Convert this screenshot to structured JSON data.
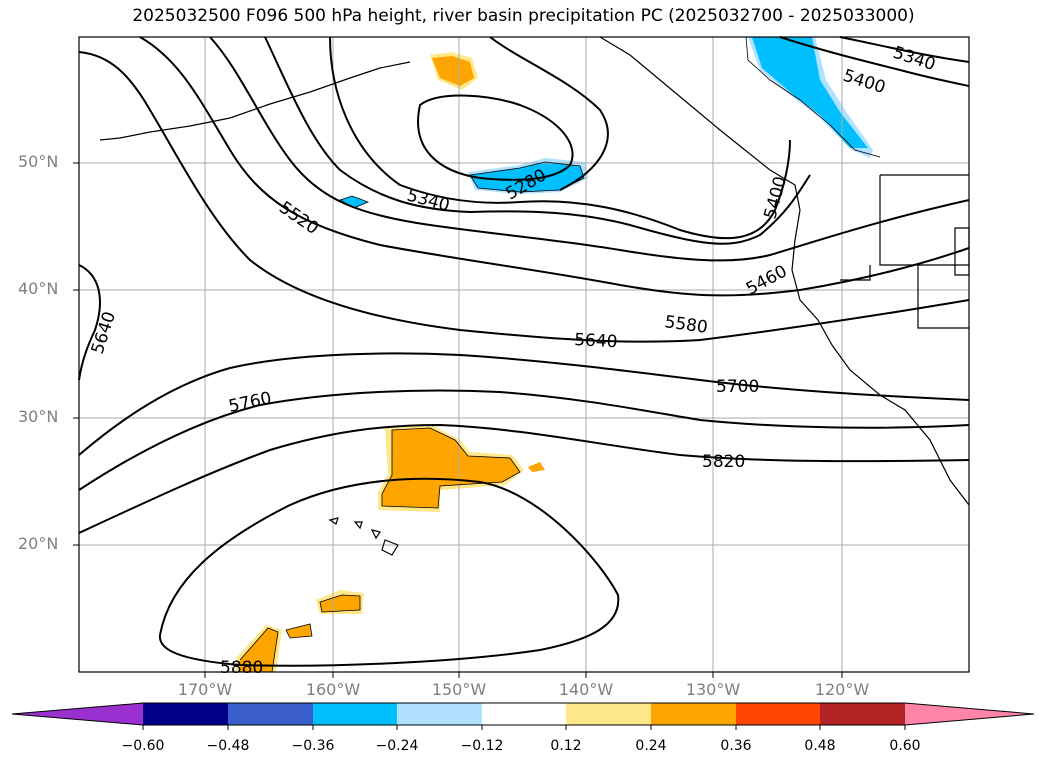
{
  "title": "2025032500 F096 500 hPa height, river basin precipitation PC (2025032700 - 2025033000)",
  "lat_labels": [
    "50°N",
    "40°N",
    "30°N",
    "20°N"
  ],
  "lon_labels": [
    "170°W",
    "160°W",
    "150°W",
    "140°W",
    "130°W",
    "120°W"
  ],
  "contour_labels": [
    "5340",
    "5400",
    "5280",
    "5340",
    "5520",
    "5400",
    "5460",
    "5640",
    "5580",
    "5640",
    "5700",
    "5760",
    "5820",
    "5880"
  ],
  "colorbar": {
    "ticks": [
      "−0.60",
      "−0.48",
      "−0.36",
      "−0.24",
      "−0.12",
      "0.12",
      "0.24",
      "0.36",
      "0.48",
      "0.60"
    ],
    "colors": [
      "#9b30d0",
      "#00008b",
      "#3a5fcd",
      "#00bfff",
      "#b0e2ff",
      "#ffffff",
      "#ffe88a",
      "#ffa500",
      "#ff4500",
      "#b22222",
      "#ff85a8"
    ]
  }
}
